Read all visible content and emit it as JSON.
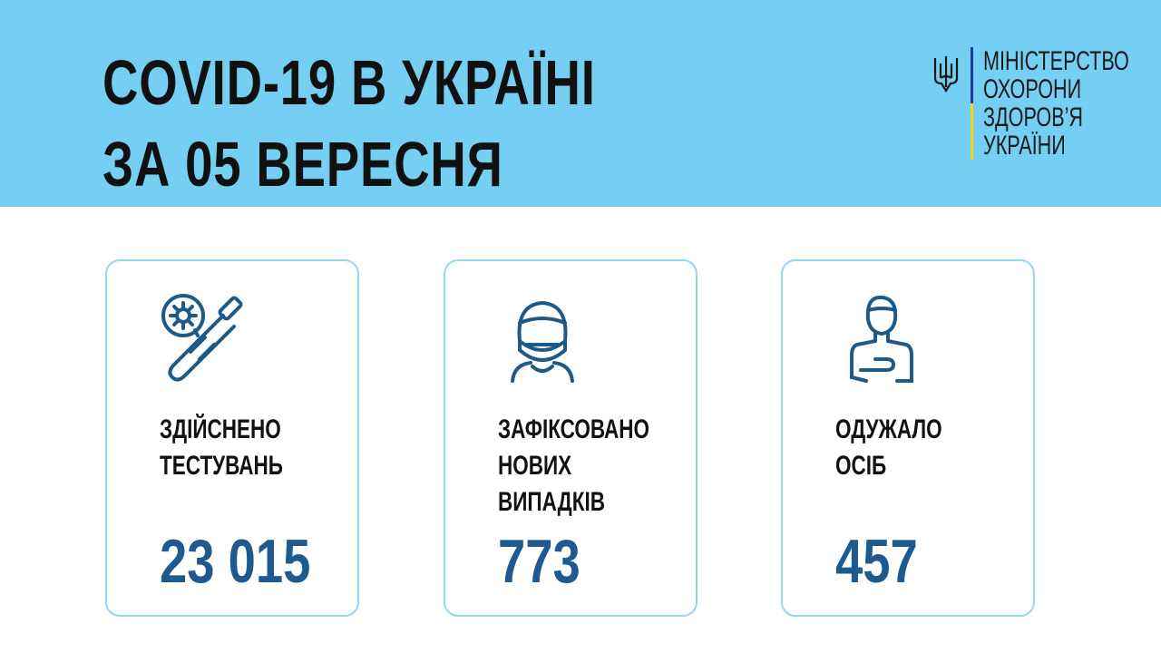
{
  "header": {
    "title_line1": "COVID-19 В УКРАЇНІ",
    "title_line2": "ЗА 05 ВЕРЕСНЯ",
    "ministry": [
      "МІНІСТЕРСТВО",
      "ОХОРОНИ",
      "ЗДОРОВ’Я",
      "УКРАЇНИ"
    ]
  },
  "colors": {
    "header_bg": "#74cff3",
    "accent": "#1f5a8f",
    "card_border": "#95d6ec",
    "flag_blue": "#1e3a9a",
    "flag_yellow": "#f2d21b"
  },
  "cards": [
    {
      "icon": "test-tube-virus-icon",
      "label": [
        "ЗДІЙСНЕНО",
        "ТЕСТУВАНЬ"
      ],
      "value": "23 015"
    },
    {
      "icon": "masked-person-icon",
      "label": [
        "ЗАФІКСОВАНО",
        "НОВИХ",
        "ВИПАДКІВ"
      ],
      "value": "773"
    },
    {
      "icon": "recovered-person-icon",
      "label": [
        "ОДУЖАЛО",
        "ОСІБ"
      ],
      "value": "457"
    }
  ]
}
